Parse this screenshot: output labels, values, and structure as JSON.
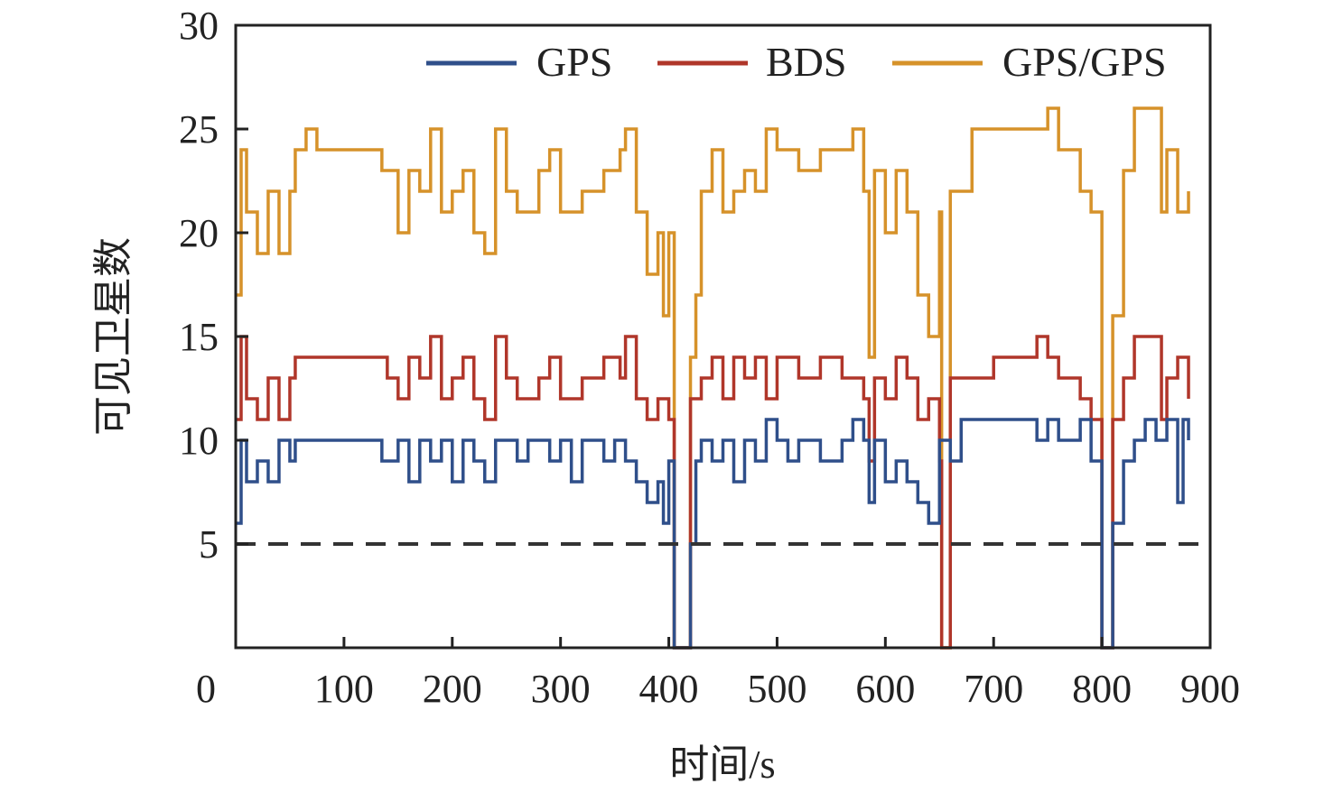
{
  "chart_data": {
    "type": "line",
    "xlabel": "时间/s",
    "ylabel": "可见卫星数",
    "xlim": [
      0,
      900
    ],
    "ylim": [
      0,
      30
    ],
    "xticks": [
      0,
      100,
      200,
      300,
      400,
      500,
      600,
      700,
      800,
      900
    ],
    "yticks": [
      5,
      10,
      15,
      20,
      25,
      30
    ],
    "x_tick_labels": [
      "0",
      "100",
      "200",
      "300",
      "400",
      "500",
      "600",
      "700",
      "800",
      "900"
    ],
    "y_tick_labels": [
      "5",
      "10",
      "15",
      "20",
      "25",
      "30"
    ],
    "grid": false,
    "legend_placement": "top",
    "threshold": {
      "value": 5,
      "style": "dashed",
      "color": "#333333"
    },
    "series": [
      {
        "name": "GPS",
        "color": "#2f4f8a",
        "points": [
          [
            0,
            6
          ],
          [
            5,
            10
          ],
          [
            10,
            8
          ],
          [
            20,
            9
          ],
          [
            30,
            8
          ],
          [
            40,
            10
          ],
          [
            50,
            9
          ],
          [
            55,
            10
          ],
          [
            130,
            10
          ],
          [
            135,
            9
          ],
          [
            150,
            10
          ],
          [
            160,
            8
          ],
          [
            170,
            10
          ],
          [
            180,
            9
          ],
          [
            190,
            10
          ],
          [
            200,
            8
          ],
          [
            210,
            10
          ],
          [
            220,
            9
          ],
          [
            230,
            8
          ],
          [
            240,
            10
          ],
          [
            260,
            9
          ],
          [
            270,
            10
          ],
          [
            290,
            9
          ],
          [
            300,
            10
          ],
          [
            310,
            8
          ],
          [
            320,
            10
          ],
          [
            340,
            9
          ],
          [
            350,
            10
          ],
          [
            360,
            9
          ],
          [
            370,
            8
          ],
          [
            380,
            7
          ],
          [
            390,
            8
          ],
          [
            395,
            6
          ],
          [
            400,
            9
          ],
          [
            405,
            0
          ],
          [
            415,
            0
          ],
          [
            420,
            5
          ],
          [
            425,
            9
          ],
          [
            430,
            10
          ],
          [
            440,
            9
          ],
          [
            450,
            10
          ],
          [
            460,
            8
          ],
          [
            470,
            10
          ],
          [
            480,
            9
          ],
          [
            490,
            11
          ],
          [
            500,
            10
          ],
          [
            510,
            9
          ],
          [
            520,
            10
          ],
          [
            540,
            9
          ],
          [
            560,
            10
          ],
          [
            570,
            11
          ],
          [
            580,
            10
          ],
          [
            585,
            7
          ],
          [
            590,
            10
          ],
          [
            600,
            8
          ],
          [
            610,
            9
          ],
          [
            620,
            8
          ],
          [
            630,
            7
          ],
          [
            640,
            6
          ],
          [
            650,
            10
          ],
          [
            660,
            9
          ],
          [
            670,
            11
          ],
          [
            730,
            11
          ],
          [
            740,
            10
          ],
          [
            750,
            11
          ],
          [
            760,
            10
          ],
          [
            780,
            11
          ],
          [
            790,
            9
          ],
          [
            800,
            0
          ],
          [
            805,
            0
          ],
          [
            810,
            6
          ],
          [
            820,
            9
          ],
          [
            830,
            10
          ],
          [
            840,
            11
          ],
          [
            850,
            10
          ],
          [
            860,
            11
          ],
          [
            870,
            7
          ],
          [
            875,
            11
          ],
          [
            880,
            10
          ]
        ]
      },
      {
        "name": "BDS",
        "color": "#b0362a",
        "points": [
          [
            0,
            11
          ],
          [
            5,
            15
          ],
          [
            10,
            12
          ],
          [
            20,
            11
          ],
          [
            30,
            13
          ],
          [
            40,
            11
          ],
          [
            50,
            13
          ],
          [
            55,
            14
          ],
          [
            130,
            14
          ],
          [
            140,
            13
          ],
          [
            150,
            12
          ],
          [
            160,
            14
          ],
          [
            170,
            13
          ],
          [
            180,
            15
          ],
          [
            190,
            12
          ],
          [
            200,
            13
          ],
          [
            210,
            14
          ],
          [
            220,
            12
          ],
          [
            230,
            11
          ],
          [
            240,
            15
          ],
          [
            250,
            13
          ],
          [
            260,
            12
          ],
          [
            280,
            13
          ],
          [
            290,
            14
          ],
          [
            300,
            12
          ],
          [
            320,
            13
          ],
          [
            340,
            14
          ],
          [
            355,
            13
          ],
          [
            360,
            15
          ],
          [
            370,
            12
          ],
          [
            380,
            11
          ],
          [
            390,
            12
          ],
          [
            400,
            11
          ],
          [
            405,
            0
          ],
          [
            415,
            0
          ],
          [
            420,
            12
          ],
          [
            430,
            13
          ],
          [
            440,
            14
          ],
          [
            450,
            12
          ],
          [
            460,
            14
          ],
          [
            470,
            13
          ],
          [
            480,
            14
          ],
          [
            490,
            12
          ],
          [
            500,
            14
          ],
          [
            520,
            13
          ],
          [
            540,
            14
          ],
          [
            560,
            13
          ],
          [
            580,
            12
          ],
          [
            585,
            9
          ],
          [
            590,
            13
          ],
          [
            600,
            12
          ],
          [
            610,
            14
          ],
          [
            620,
            13
          ],
          [
            630,
            11
          ],
          [
            640,
            12
          ],
          [
            650,
            9
          ],
          [
            652,
            0
          ],
          [
            656,
            0
          ],
          [
            660,
            13
          ],
          [
            700,
            14
          ],
          [
            740,
            15
          ],
          [
            750,
            14
          ],
          [
            760,
            13
          ],
          [
            780,
            12
          ],
          [
            790,
            11
          ],
          [
            800,
            0
          ],
          [
            805,
            0
          ],
          [
            810,
            11
          ],
          [
            820,
            13
          ],
          [
            830,
            15
          ],
          [
            850,
            15
          ],
          [
            855,
            11
          ],
          [
            860,
            13
          ],
          [
            870,
            14
          ],
          [
            880,
            12
          ]
        ]
      },
      {
        "name": "GPS/GPS",
        "color": "#d6922a",
        "points": [
          [
            0,
            17
          ],
          [
            5,
            24
          ],
          [
            10,
            21
          ],
          [
            20,
            19
          ],
          [
            30,
            22
          ],
          [
            40,
            19
          ],
          [
            50,
            22
          ],
          [
            55,
            24
          ],
          [
            65,
            25
          ],
          [
            75,
            24
          ],
          [
            130,
            24
          ],
          [
            135,
            23
          ],
          [
            150,
            20
          ],
          [
            160,
            23
          ],
          [
            170,
            22
          ],
          [
            180,
            25
          ],
          [
            190,
            21
          ],
          [
            200,
            22
          ],
          [
            210,
            23
          ],
          [
            220,
            20
          ],
          [
            230,
            19
          ],
          [
            240,
            25
          ],
          [
            250,
            22
          ],
          [
            260,
            21
          ],
          [
            280,
            23
          ],
          [
            290,
            24
          ],
          [
            300,
            21
          ],
          [
            320,
            22
          ],
          [
            340,
            23
          ],
          [
            355,
            24
          ],
          [
            360,
            25
          ],
          [
            370,
            21
          ],
          [
            380,
            18
          ],
          [
            390,
            20
          ],
          [
            395,
            16
          ],
          [
            400,
            20
          ],
          [
            405,
            0
          ],
          [
            415,
            0
          ],
          [
            420,
            14
          ],
          [
            425,
            17
          ],
          [
            430,
            22
          ],
          [
            440,
            24
          ],
          [
            450,
            21
          ],
          [
            460,
            22
          ],
          [
            470,
            23
          ],
          [
            480,
            22
          ],
          [
            490,
            25
          ],
          [
            500,
            24
          ],
          [
            520,
            23
          ],
          [
            540,
            24
          ],
          [
            560,
            24
          ],
          [
            570,
            25
          ],
          [
            580,
            22
          ],
          [
            585,
            14
          ],
          [
            590,
            23
          ],
          [
            600,
            20
          ],
          [
            610,
            23
          ],
          [
            620,
            21
          ],
          [
            630,
            17
          ],
          [
            640,
            15
          ],
          [
            650,
            21
          ],
          [
            652,
            0
          ],
          [
            656,
            0
          ],
          [
            660,
            22
          ],
          [
            680,
            25
          ],
          [
            740,
            25
          ],
          [
            750,
            26
          ],
          [
            760,
            24
          ],
          [
            780,
            22
          ],
          [
            790,
            21
          ],
          [
            800,
            0
          ],
          [
            805,
            0
          ],
          [
            810,
            16
          ],
          [
            820,
            23
          ],
          [
            830,
            26
          ],
          [
            850,
            26
          ],
          [
            855,
            21
          ],
          [
            860,
            24
          ],
          [
            870,
            21
          ],
          [
            880,
            22
          ]
        ]
      }
    ]
  }
}
